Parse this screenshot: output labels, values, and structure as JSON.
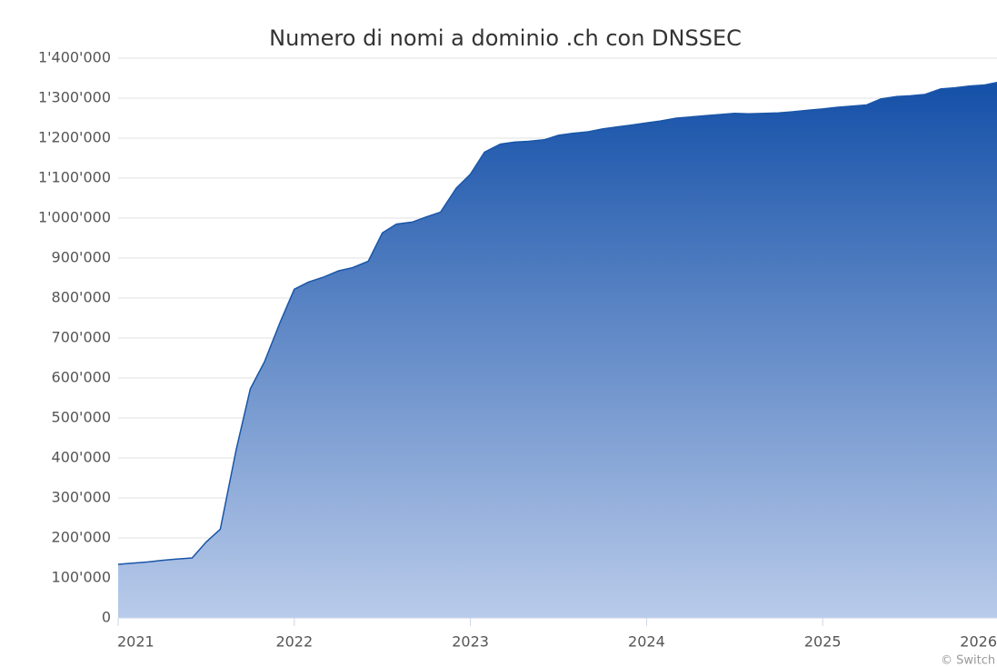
{
  "chart_data": {
    "type": "area",
    "title": "Numero di nomi a dominio .ch con DNSSEC",
    "credit": "© Switch",
    "color": "#1a56a8",
    "x": [
      2021.0,
      2021.08,
      2021.17,
      2021.25,
      2021.33,
      2021.42,
      2021.5,
      2021.58,
      2021.67,
      2021.75,
      2021.83,
      2021.92,
      2022.0,
      2022.08,
      2022.17,
      2022.25,
      2022.33,
      2022.42,
      2022.5,
      2022.58,
      2022.67,
      2022.75,
      2022.83,
      2022.92,
      2023.0,
      2023.08,
      2023.17,
      2023.25,
      2023.33,
      2023.42,
      2023.5,
      2023.58,
      2023.67,
      2023.75,
      2023.83,
      2023.92,
      2024.0,
      2024.08,
      2024.17,
      2024.25,
      2024.33,
      2024.42,
      2024.5,
      2024.58,
      2024.67,
      2024.75,
      2024.83,
      2024.92,
      2025.0,
      2025.08,
      2025.17,
      2025.25,
      2025.33,
      2025.42,
      2025.5,
      2025.58,
      2025.67,
      2025.75,
      2025.83,
      2025.92,
      2026.0
    ],
    "values": [
      134000,
      137000,
      140000,
      144000,
      147000,
      150000,
      190000,
      222000,
      420000,
      573000,
      640000,
      740000,
      822000,
      840000,
      853000,
      868000,
      876000,
      892000,
      963000,
      985000,
      990000,
      1003000,
      1015000,
      1075000,
      1110000,
      1165000,
      1185000,
      1190000,
      1192000,
      1196000,
      1207000,
      1212000,
      1216000,
      1223000,
      1228000,
      1233000,
      1238000,
      1243000,
      1250000,
      1253000,
      1256000,
      1259000,
      1262000,
      1261000,
      1262000,
      1263000,
      1266000,
      1270000,
      1273000,
      1277000,
      1280000,
      1283000,
      1298000,
      1304000,
      1306000,
      1309000,
      1323000,
      1326000,
      1330000,
      1333000,
      1340000
    ],
    "xlim": [
      2021,
      2026
    ],
    "xticks": [
      2021,
      2022,
      2023,
      2024,
      2025,
      2026
    ],
    "ylim": [
      0,
      1400000
    ],
    "yticks": [
      0,
      {
        "value": 100000,
        "label": "100'000"
      },
      {
        "value": 200000,
        "label": "200'000"
      },
      {
        "value": 300000,
        "label": "300'000"
      },
      {
        "value": 400000,
        "label": "400'000"
      },
      {
        "value": 500000,
        "label": "500'000"
      },
      {
        "value": 600000,
        "label": "600'000"
      },
      {
        "value": 700000,
        "label": "700'000"
      },
      {
        "value": 800000,
        "label": "800'000"
      },
      {
        "value": 900000,
        "label": "900'000"
      },
      {
        "value": 1000000,
        "label": "1'000'000"
      },
      {
        "value": 1100000,
        "label": "1'100'000"
      },
      {
        "value": 1200000,
        "label": "1'200'000"
      },
      {
        "value": 1300000,
        "label": "1'300'000"
      },
      {
        "value": 1400000,
        "label": "1'400'000"
      }
    ],
    "grid": true
  }
}
